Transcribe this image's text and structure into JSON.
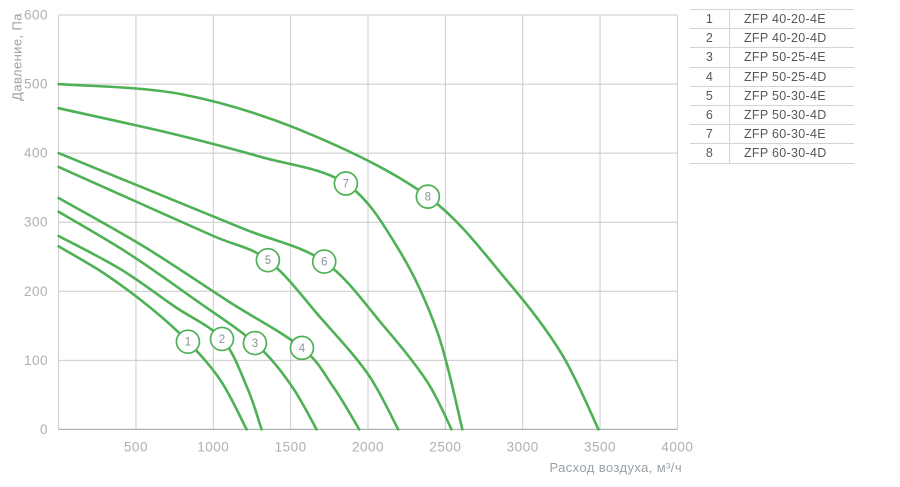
{
  "chart": {
    "y_axis_title": "Давление, Па",
    "x_axis_title": "Расход воздуха, м³/ч",
    "x_ticks": [
      500,
      1000,
      1500,
      2000,
      2500,
      3000,
      3500,
      4000
    ],
    "y_ticks": [
      0,
      100,
      200,
      300,
      400,
      500,
      600
    ]
  },
  "chart_data": {
    "type": "line",
    "title": "",
    "xlabel": "Расход воздуха, м³/ч",
    "ylabel": "Давление, Па",
    "xlim": [
      0,
      4000
    ],
    "ylim": [
      0,
      600
    ],
    "x_step": 500,
    "y_step": 100,
    "grid": true,
    "legend_position": "right-table",
    "series": [
      {
        "name": "1",
        "model": "ZFP 40-20-4E",
        "points": [
          [
            0,
            265
          ],
          [
            300,
            225
          ],
          [
            600,
            175
          ],
          [
            836,
            127
          ],
          [
            1050,
            70
          ],
          [
            1215,
            0
          ]
        ],
        "label_at": [
          836,
          127
        ]
      },
      {
        "name": "2",
        "model": "ZFP 40-20-4D",
        "points": [
          [
            0,
            280
          ],
          [
            400,
            232
          ],
          [
            750,
            178
          ],
          [
            1056,
            131
          ],
          [
            1220,
            60
          ],
          [
            1312,
            0
          ]
        ],
        "label_at": [
          1056,
          131
        ]
      },
      {
        "name": "3",
        "model": "ZFP 50-25-4E",
        "points": [
          [
            0,
            315
          ],
          [
            450,
            255
          ],
          [
            900,
            185
          ],
          [
            1269,
            125
          ],
          [
            1500,
            65
          ],
          [
            1668,
            0
          ]
        ],
        "label_at": [
          1269,
          125
        ]
      },
      {
        "name": "4",
        "model": "ZFP 50-25-4D",
        "points": [
          [
            0,
            335
          ],
          [
            550,
            265
          ],
          [
            1100,
            185
          ],
          [
            1573,
            118
          ],
          [
            1780,
            60
          ],
          [
            1943,
            0
          ]
        ],
        "label_at": [
          1573,
          118
        ]
      },
      {
        "name": "5",
        "model": "ZFP 50-30-4E",
        "points": [
          [
            0,
            380
          ],
          [
            500,
            330
          ],
          [
            1000,
            280
          ],
          [
            1353,
            245
          ],
          [
            1700,
            160
          ],
          [
            2000,
            80
          ],
          [
            2195,
            0
          ]
        ],
        "label_at": [
          1353,
          245
        ]
      },
      {
        "name": "6",
        "model": "ZFP 50-30-4D",
        "points": [
          [
            0,
            400
          ],
          [
            600,
            345
          ],
          [
            1200,
            290
          ],
          [
            1717,
            243
          ],
          [
            2100,
            150
          ],
          [
            2380,
            70
          ],
          [
            2540,
            0
          ]
        ],
        "label_at": [
          1717,
          243
        ]
      },
      {
        "name": "7",
        "model": "ZFP 60-30-4E",
        "points": [
          [
            0,
            465
          ],
          [
            700,
            430
          ],
          [
            1300,
            395
          ],
          [
            1857,
            356
          ],
          [
            2200,
            260
          ],
          [
            2450,
            140
          ],
          [
            2610,
            0
          ]
        ],
        "label_at": [
          1857,
          356
        ]
      },
      {
        "name": "8",
        "model": "ZFP 60-30-4D",
        "points": [
          [
            0,
            500
          ],
          [
            800,
            485
          ],
          [
            1600,
            430
          ],
          [
            2387,
            337
          ],
          [
            2900,
            215
          ],
          [
            3250,
            110
          ],
          [
            3490,
            0
          ]
        ],
        "label_at": [
          2387,
          337
        ]
      }
    ]
  },
  "legend_table": {
    "rows": [
      {
        "num": "1",
        "model": "ZFP 40-20-4E"
      },
      {
        "num": "2",
        "model": "ZFP 40-20-4D"
      },
      {
        "num": "3",
        "model": "ZFP 50-25-4E"
      },
      {
        "num": "4",
        "model": "ZFP 50-25-4D"
      },
      {
        "num": "5",
        "model": "ZFP 50-30-4E"
      },
      {
        "num": "6",
        "model": "ZFP 50-30-4D"
      },
      {
        "num": "7",
        "model": "ZFP 60-30-4E"
      },
      {
        "num": "8",
        "model": "ZFP 60-30-4D"
      }
    ]
  },
  "colors": {
    "curve": "#4fb155",
    "grid": "#c9cbcc",
    "axis": "#b0b3b5",
    "tick_text": "#aab0b4",
    "axis_title": "#9aa1a6",
    "circle_text": "#8a9299",
    "circle_fill": "#ffffff",
    "table_text": "#55585b",
    "table_border": "#d2d4d5",
    "background": "#ffffff"
  }
}
